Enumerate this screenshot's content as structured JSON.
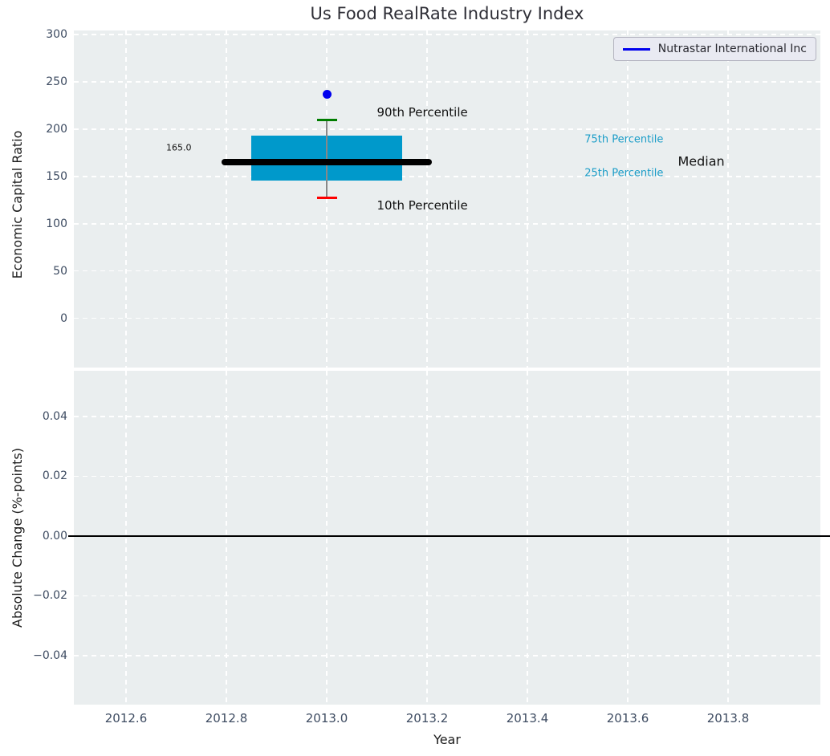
{
  "title": "Us Food RealRate Industry Index",
  "legend": {
    "label": "Nutrastar International Inc"
  },
  "colors": {
    "figure-bg": "#ffffff",
    "axes-bg": "#eaeeef",
    "grid": "#ffffff",
    "tick-label": "#3d4b61",
    "title-color": "#2e2e36",
    "axis-label": "#1c1c1c",
    "legend-bg": "#e9eaf2",
    "legend-border": "#b3b3bf",
    "company": "#0000ee",
    "cyan-text": "#1b9dc8"
  },
  "chart_data": [
    {
      "type": "boxplot",
      "title": "Us Food RealRate Industry Index",
      "ylabel": "Economic Capital Ratio",
      "xlabel": "",
      "xlim": [
        2012.496,
        2013.984
      ],
      "ylim": [
        -52,
        304.2
      ],
      "grid": true,
      "xtick_values": [
        2012.6,
        2012.8,
        2013.0,
        2013.2,
        2013.4,
        2013.6,
        2013.8
      ],
      "ytick_values": [
        0,
        50,
        100,
        150,
        200,
        250,
        300
      ],
      "ytick_labels": [
        "0",
        "50",
        "100",
        "150",
        "200",
        "250",
        "300"
      ],
      "box": {
        "x": 2013.0,
        "p10": 127,
        "p25": 146,
        "median": 165,
        "p75": 193,
        "p90": 210,
        "company_value": 237,
        "box_x_range": [
          2012.85,
          2013.15
        ],
        "median_x_range": [
          2012.79,
          2013.21
        ],
        "cap_x_range": [
          2012.98,
          2013.02
        ],
        "colors": {
          "box": "#0099cb",
          "median": "#000000",
          "whisker": "#888888",
          "cap_top": "#007d00",
          "cap_bottom": "#fe0000",
          "company": "#0000ee"
        }
      },
      "annotations": [
        {
          "id": "median-value-label",
          "label": "165.0",
          "x": 2012.68,
          "y": 180,
          "color": "#111111",
          "size": 11
        },
        {
          "id": "p90-label",
          "label": "90th Percentile",
          "x": 2013.1,
          "y": 218,
          "color": "#111111",
          "size": 15
        },
        {
          "id": "p10-label",
          "label": "10th Percentile",
          "x": 2013.1,
          "y": 119,
          "color": "#111111",
          "size": 15
        },
        {
          "id": "p75-label",
          "label": "75th Percentile",
          "x": 2013.514,
          "y": 189,
          "color": "#1b9dc8",
          "size": 13
        },
        {
          "id": "p25-label",
          "label": "25th Percentile",
          "x": 2013.514,
          "y": 153,
          "color": "#1b9dc8",
          "size": 13
        },
        {
          "id": "median-label",
          "label": "Median",
          "x": 2013.7,
          "y": 166,
          "color": "#111111",
          "size": 16
        }
      ],
      "legend_entries": [
        "Nutrastar International Inc"
      ]
    },
    {
      "type": "line",
      "ylabel": "Absolute Change (%-points)",
      "xlabel": "Year",
      "xlim": [
        2012.496,
        2013.984
      ],
      "ylim": [
        -0.0564,
        0.0553
      ],
      "grid": true,
      "xtick_values": [
        2012.6,
        2012.8,
        2013.0,
        2013.2,
        2013.4,
        2013.6,
        2013.8
      ],
      "xtick_labels": [
        "2012.6",
        "2012.8",
        "2013.0",
        "2013.2",
        "2013.4",
        "2013.6",
        "2013.8"
      ],
      "ytick_values": [
        -0.04,
        -0.02,
        0.0,
        0.02,
        0.04
      ],
      "ytick_labels": [
        "−0.04",
        "−0.02",
        "0.00",
        "0.02",
        "0.04"
      ],
      "series": [],
      "zero_line": {
        "y": 0.0,
        "color": "#000000"
      }
    }
  ]
}
